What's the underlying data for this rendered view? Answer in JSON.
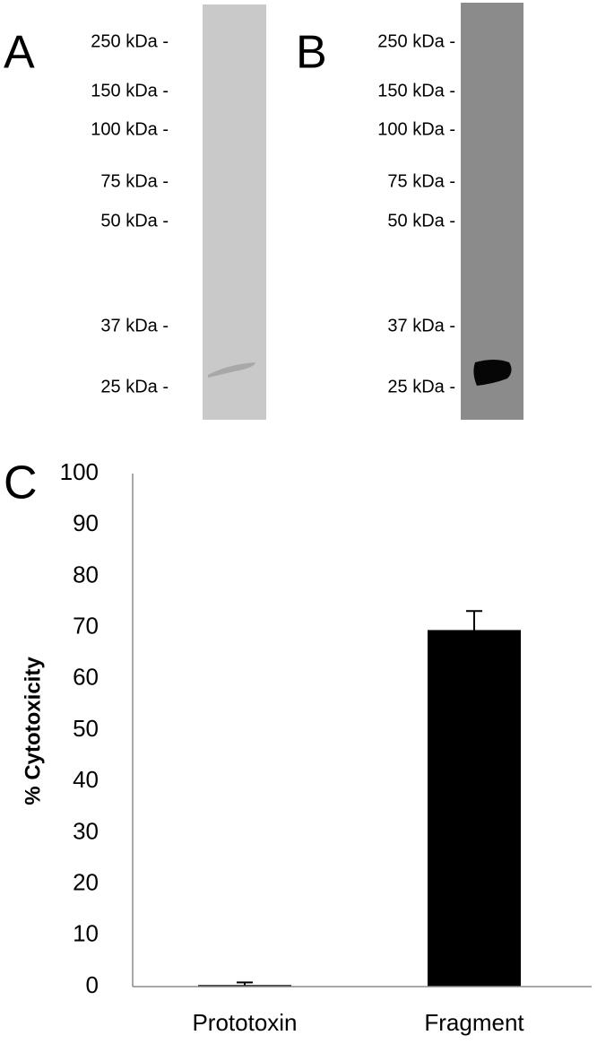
{
  "blots": [
    {
      "label": "A",
      "markers": [
        "250 kDa -",
        "150 kDa -",
        "100 kDa -",
        "75 kDa -",
        "50 kDa -",
        "37 kDa -",
        "25 kDa -"
      ]
    },
    {
      "label": "B",
      "markers": [
        "250 kDa -",
        "150 kDa -",
        "100 kDa -",
        "75 kDa -",
        "50 kDa -",
        "37 kDa -",
        "25 kDa -"
      ]
    }
  ],
  "chart_data": {
    "type": "bar",
    "label": "C",
    "ylabel": "% Cytotoxicity",
    "categories": [
      "Prototoxin",
      "Fragment"
    ],
    "values": [
      0.3,
      69.5
    ],
    "errors": [
      0.5,
      3.7
    ],
    "color": "#000000",
    "ylim": [
      0,
      100
    ],
    "yticks": [
      0,
      10,
      20,
      30,
      40,
      50,
      60,
      70,
      80,
      90,
      100
    ],
    "grid": false
  }
}
